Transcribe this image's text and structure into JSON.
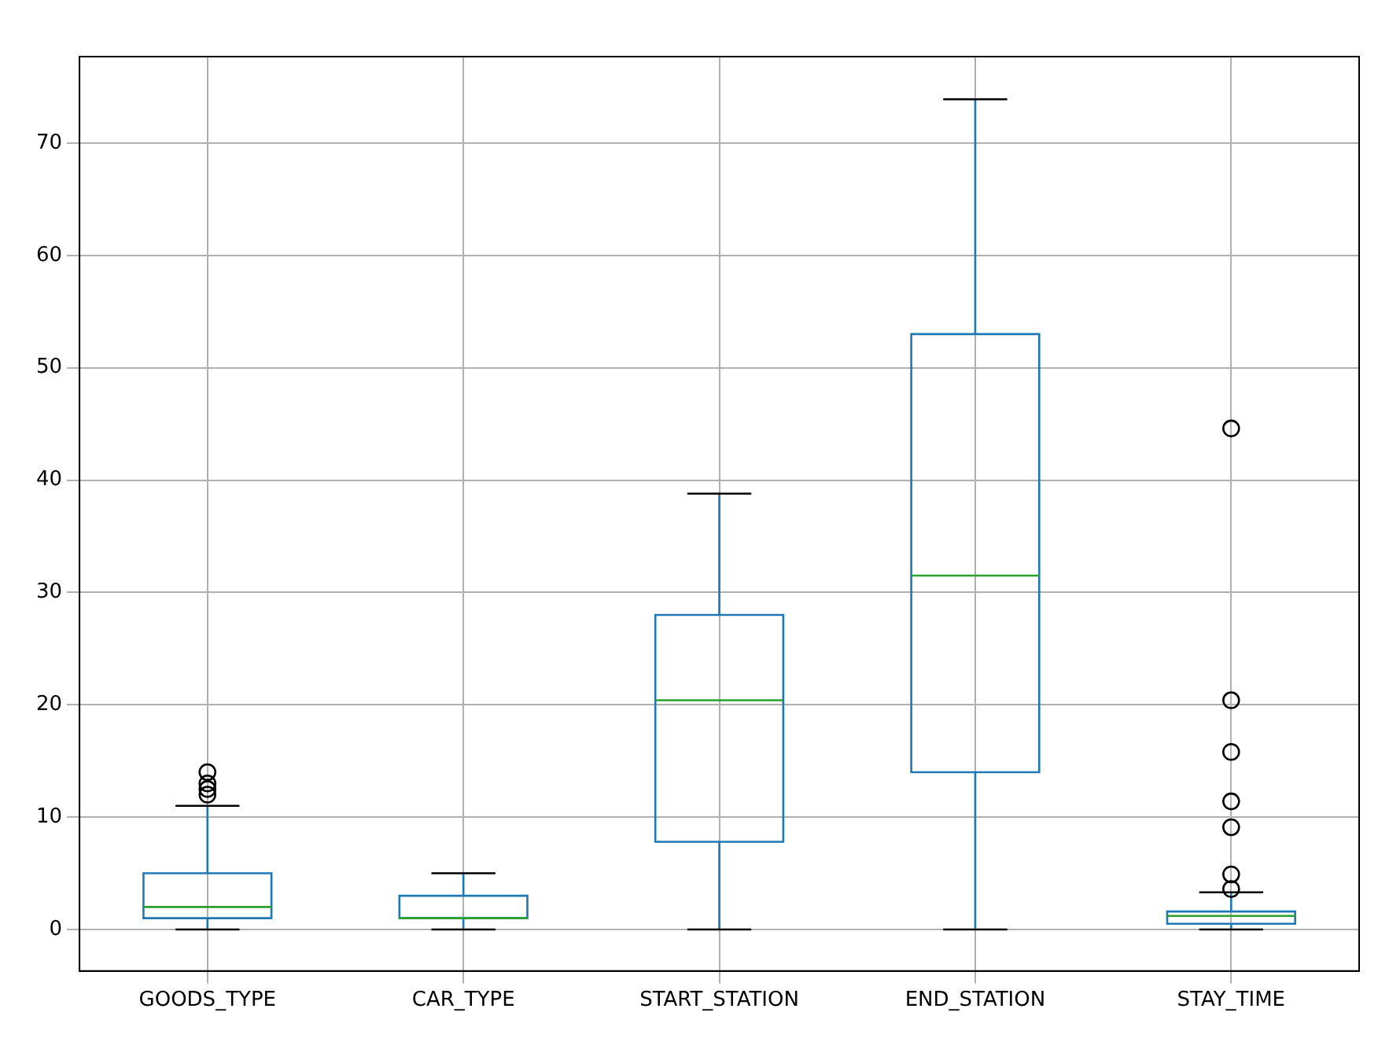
{
  "chart_data": {
    "type": "box",
    "categories": [
      "GOODS_TYPE",
      "CAR_TYPE",
      "START_STATION",
      "END_STATION",
      "STAY_TIME"
    ],
    "color": "#1f77b4",
    "boxes": [
      {
        "low": 0,
        "q1": 1,
        "median": 2,
        "q3": 5,
        "high": 11,
        "outliers": [
          12,
          12.5,
          13,
          14
        ]
      },
      {
        "low": 0,
        "q1": 1,
        "median": 1,
        "q3": 3,
        "high": 5
      },
      {
        "low": 0,
        "q1": 7.8,
        "median": 20.4,
        "q3": 28,
        "high": 38.8
      },
      {
        "low": 0,
        "q1": 14,
        "median": 31.5,
        "q3": 53,
        "high": 73.9
      },
      {
        "low": 0,
        "q1": 0.5,
        "median": 1.2,
        "q3": 1.6,
        "high": 3.3,
        "outliers": [
          3.6,
          4.9,
          9.1,
          11.4,
          15.8,
          20.4,
          44.6
        ]
      }
    ],
    "ylim": [
      -3.7,
      77.7
    ],
    "yticks": [
      0,
      10,
      20,
      30,
      40,
      50,
      60,
      70
    ],
    "grid": true,
    "legend": false
  }
}
